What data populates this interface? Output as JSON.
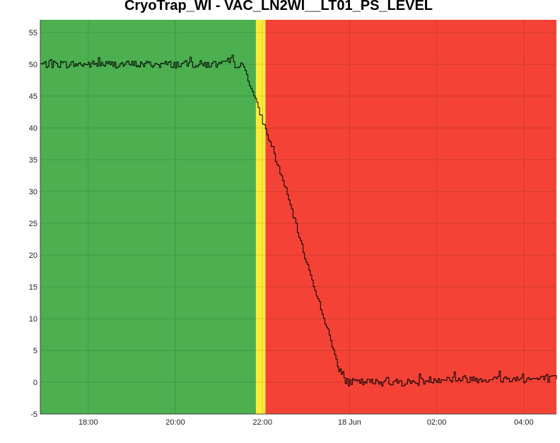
{
  "chart_data": {
    "type": "line",
    "title": "CryoTrap_WI - VAC_LN2WI__LT01_PS_LEVEL",
    "xlabel": "",
    "ylabel": "",
    "x_ticks": [
      "18:00",
      "20:00",
      "22:00",
      "18 Jun",
      "02:00",
      "04:00"
    ],
    "y_ticks": [
      -5,
      0,
      5,
      10,
      15,
      20,
      25,
      30,
      35,
      40,
      45,
      50,
      55
    ],
    "ylim": [
      -5,
      57
    ],
    "xlim_hours": [
      16.9,
      28.75
    ],
    "grid": true,
    "bands": [
      {
        "state": "ok",
        "from": 16.9,
        "to": 21.85,
        "color": "#4caf50"
      },
      {
        "state": "warning",
        "from": 21.85,
        "to": 22.07,
        "color": "#ffeb3b"
      },
      {
        "state": "alarm",
        "from": 22.07,
        "to": 28.75,
        "color": "#f44336"
      }
    ],
    "line_color": "#000000",
    "series": [
      {
        "name": "",
        "x": [
          16.9,
          17.5,
          18.0,
          18.5,
          19.0,
          19.5,
          20.0,
          20.5,
          21.0,
          21.5,
          21.6,
          21.8,
          22.0,
          22.1,
          22.5,
          23.0,
          23.5,
          23.75,
          23.9,
          24.5,
          25.0,
          25.5,
          26.0,
          26.5,
          27.0,
          27.5,
          28.0,
          28.75
        ],
        "y": [
          50,
          50,
          50,
          50,
          50,
          50,
          50,
          50,
          50,
          50,
          49,
          45,
          41,
          39,
          31,
          19,
          8,
          2,
          0,
          0,
          0,
          0,
          0.5,
          0.5,
          0.5,
          0.5,
          0.5,
          0.5
        ]
      }
    ]
  }
}
